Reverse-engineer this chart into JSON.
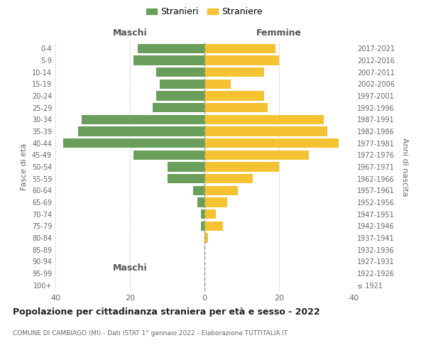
{
  "age_groups": [
    "100+",
    "95-99",
    "90-94",
    "85-89",
    "80-84",
    "75-79",
    "70-74",
    "65-69",
    "60-64",
    "55-59",
    "50-54",
    "45-49",
    "40-44",
    "35-39",
    "30-34",
    "25-29",
    "20-24",
    "15-19",
    "10-14",
    "5-9",
    "0-4"
  ],
  "birth_years": [
    "≤ 1921",
    "1922-1926",
    "1927-1931",
    "1932-1936",
    "1937-1941",
    "1942-1946",
    "1947-1951",
    "1952-1956",
    "1957-1961",
    "1962-1966",
    "1967-1971",
    "1972-1976",
    "1977-1981",
    "1982-1986",
    "1987-1991",
    "1992-1996",
    "1997-2001",
    "2002-2006",
    "2007-2011",
    "2012-2016",
    "2017-2021"
  ],
  "maschi": [
    0,
    0,
    0,
    0,
    0,
    1,
    1,
    2,
    3,
    10,
    10,
    19,
    38,
    34,
    33,
    14,
    13,
    12,
    13,
    19,
    18
  ],
  "femmine": [
    0,
    0,
    0,
    0,
    1,
    5,
    3,
    6,
    9,
    13,
    20,
    28,
    36,
    33,
    32,
    17,
    16,
    7,
    16,
    20,
    19
  ],
  "male_color": "#6a9f5b",
  "female_color": "#f5c232",
  "title": "Popolazione per cittadinanza straniera per età e sesso - 2022",
  "subtitle": "COMUNE DI CAMBIAGO (MI) - Dati ISTAT 1° gennaio 2022 - Elaborazione TUTTITALIA.IT",
  "ylabel_left": "Fasce di età",
  "ylabel_right": "Anni di nascita",
  "xlabel_left": "Maschi",
  "xlabel_top_right": "Femmine",
  "legend_male": "Stranieri",
  "legend_female": "Straniere",
  "xlim": 40,
  "bar_height": 0.8,
  "background_color": "#ffffff",
  "grid_color": "#cccccc"
}
